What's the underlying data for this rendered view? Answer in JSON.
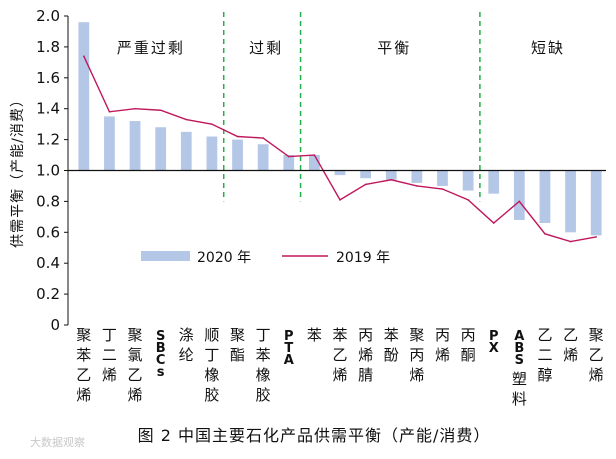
{
  "chart_data": {
    "type": "bar",
    "categories": [
      "聚苯乙烯",
      "丁二烯",
      "聚氯乙烯",
      "SBCs",
      "涤纶",
      "顺丁橡胶",
      "聚酯",
      "丁苯橡胶",
      "PTA",
      "苯",
      "苯乙烯",
      "丙烯腈",
      "苯酚",
      "聚丙烯",
      "丙烯",
      "丙酮",
      "PX",
      "ABS塑料",
      "乙二醇",
      "乙烯",
      "聚乙烯"
    ],
    "series": [
      {
        "name": "2020 年",
        "type": "bar",
        "color": "#b4c7e7",
        "values": [
          1.96,
          1.35,
          1.32,
          1.28,
          1.25,
          1.22,
          1.2,
          1.17,
          1.1,
          1.1,
          0.97,
          0.95,
          0.94,
          0.92,
          0.9,
          0.87,
          0.85,
          0.68,
          0.66,
          0.6,
          0.58
        ]
      },
      {
        "name": "2019 年",
        "type": "line",
        "color": "#c0185c",
        "values": [
          1.74,
          1.38,
          1.4,
          1.39,
          1.33,
          1.3,
          1.22,
          1.21,
          1.09,
          1.1,
          0.81,
          0.91,
          0.94,
          0.9,
          0.88,
          0.81,
          0.66,
          0.8,
          0.59,
          0.54,
          0.57
        ]
      }
    ],
    "ylabel": "供需平衡（产能/消费）",
    "ylim": [
      0,
      2.0
    ],
    "yticks": [
      "0",
      "0.2",
      "0.4",
      "0.6",
      "0.8",
      "1.0",
      "1.2",
      "1.4",
      "1.6",
      "1.8",
      "2.0"
    ],
    "reference_line": 1.0,
    "zones": [
      {
        "label": "严重过剩",
        "from": 0,
        "to": 5
      },
      {
        "label": "过剩",
        "from": 6,
        "to": 8
      },
      {
        "label": "平衡",
        "from": 9,
        "to": 15
      },
      {
        "label": "短缺",
        "from": 16,
        "to": 20
      }
    ],
    "zone_divider_color": "#22b04a",
    "grid": false,
    "legend_position": "center"
  },
  "caption": "图 2   中国主要石化产品供需平衡（产能/消费）",
  "watermark": "大数据观察"
}
